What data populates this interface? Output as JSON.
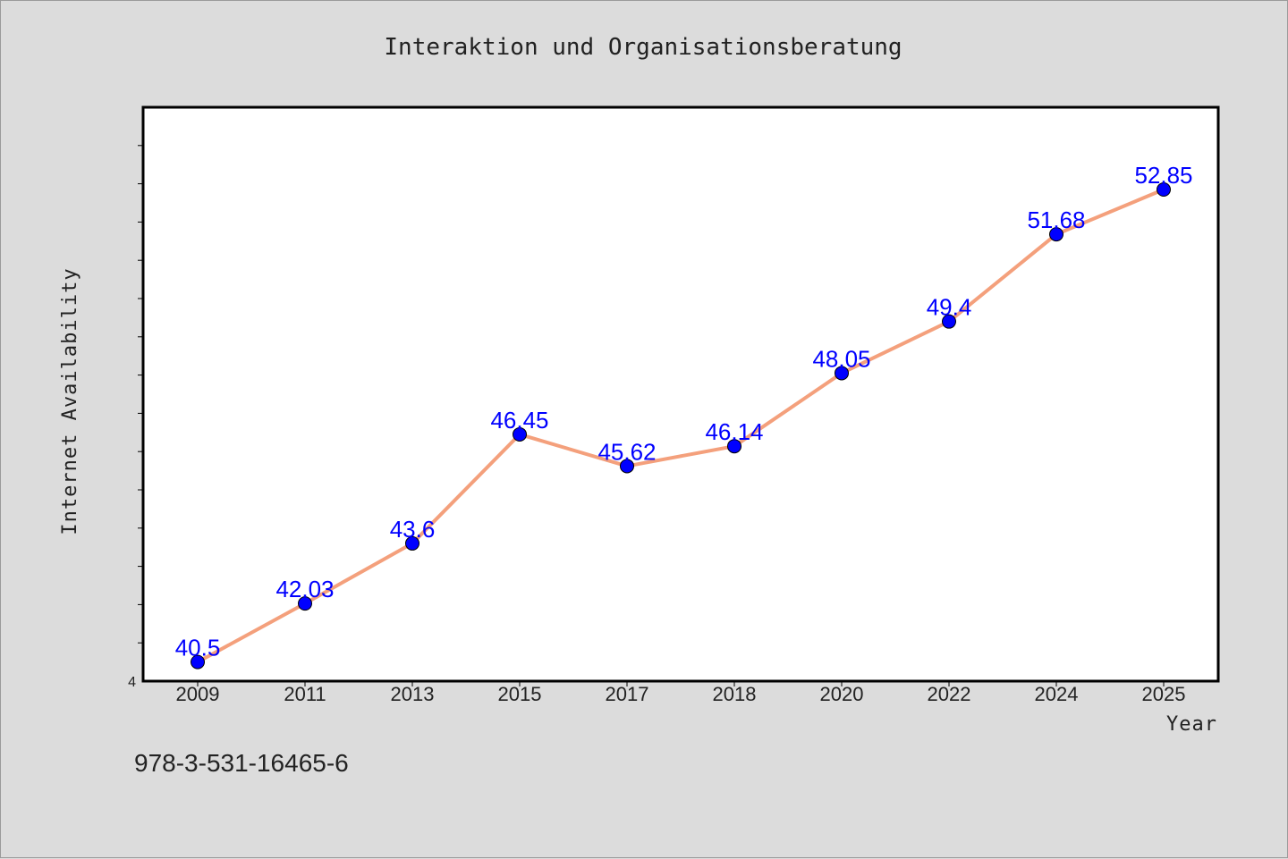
{
  "chart_data": {
    "type": "line",
    "title": "Interaktion und Organisationsberatung",
    "xlabel": "Year",
    "ylabel": "Internet Availability",
    "categories": [
      "2009",
      "2011",
      "2013",
      "2015",
      "2017",
      "2018",
      "2020",
      "2022",
      "2024",
      "2025"
    ],
    "series": [
      {
        "values": [
          40.5,
          42.03,
          43.6,
          46.45,
          45.62,
          46.14,
          48.05,
          49.4,
          51.68,
          52.85
        ],
        "labels": [
          "40.5",
          "42.03",
          "43.6",
          "46.45",
          "45.62",
          "46.14",
          "48.05",
          "49.4",
          "51.68",
          "52.85"
        ],
        "line_color": "#f4a07c",
        "marker_color": "#0000ff"
      }
    ],
    "y_tick_labels": [
      "4"
    ],
    "ylim": [
      40,
      55
    ],
    "grid": false,
    "legend": "none",
    "footer": "978-3-531-16465-6"
  }
}
